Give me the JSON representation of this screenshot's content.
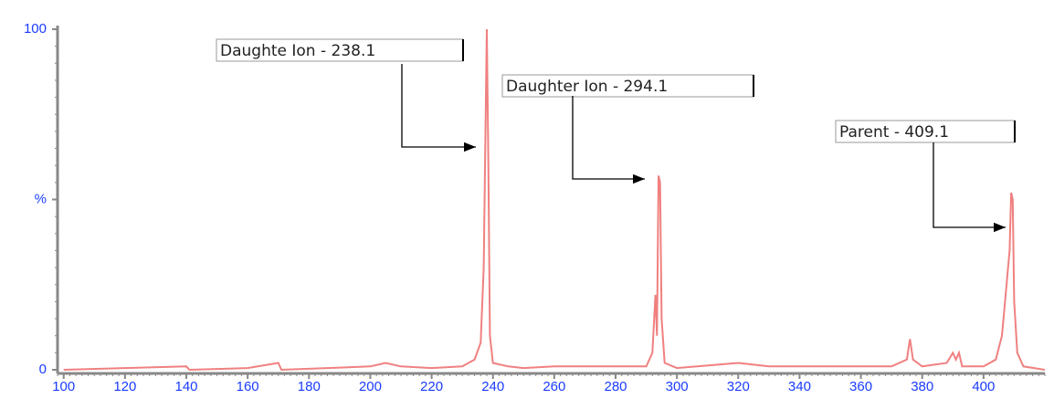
{
  "chart_data": {
    "type": "line",
    "x": [
      100,
      120,
      140,
      141,
      160,
      170,
      171,
      200,
      205,
      210,
      220,
      230,
      234,
      236,
      237,
      238,
      238.5,
      239,
      240,
      245,
      250,
      260,
      280,
      290,
      292,
      293,
      293.5,
      294,
      294.5,
      295,
      296,
      300,
      320,
      330,
      350,
      370,
      375,
      376,
      377,
      380,
      388,
      390,
      391,
      392,
      393,
      400,
      404,
      406,
      407,
      408,
      408.5,
      409,
      409.5,
      410,
      411,
      413,
      420
    ],
    "series": [
      {
        "color": "#f08080",
        "values": [
          0,
          0.5,
          1,
          0,
          0.5,
          2,
          0,
          1,
          2,
          1,
          0.5,
          1,
          3,
          8,
          30,
          100,
          60,
          10,
          2,
          1,
          0.5,
          1,
          1,
          1,
          5,
          22,
          10,
          57,
          55,
          15,
          2,
          0.5,
          2,
          1,
          1,
          1,
          3,
          9,
          3,
          1,
          2,
          5,
          3,
          5,
          1,
          1,
          3,
          10,
          20,
          30,
          35,
          52,
          50,
          20,
          5,
          1,
          0
        ]
      }
    ],
    "xlim": [
      98,
      420
    ],
    "ylim": [
      0,
      100
    ],
    "xticks": [
      100,
      120,
      140,
      160,
      180,
      200,
      220,
      240,
      260,
      280,
      300,
      320,
      340,
      360,
      380,
      400
    ],
    "yticks": [
      0,
      {
        "value": 50,
        "label": "%"
      },
      100
    ],
    "annotations": [
      "Daughte Ion - 238.1",
      "Daughter Ion - 294.1",
      "Parent - 409.1"
    ]
  }
}
